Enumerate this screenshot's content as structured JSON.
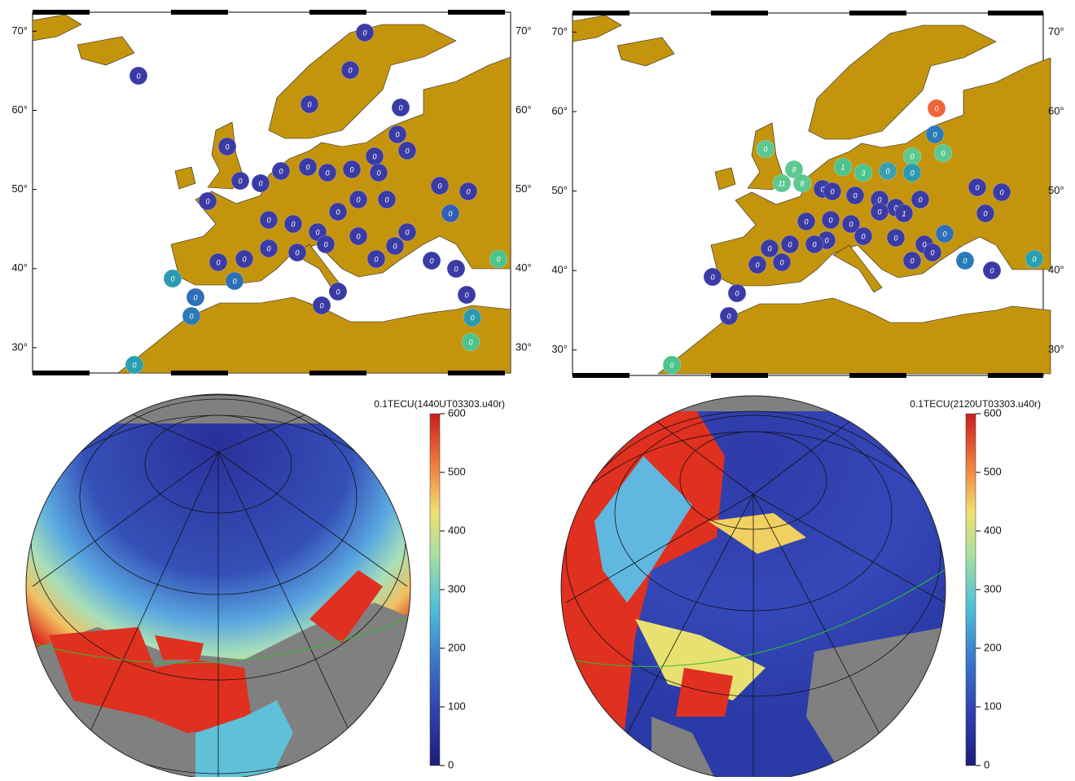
{
  "maps": [
    {
      "ylim": [
        26.8,
        72.4
      ],
      "yticks": [
        {
          "value": 70,
          "label": "70°"
        },
        {
          "value": 60,
          "label": "60°"
        },
        {
          "value": 50,
          "label": "50°"
        },
        {
          "value": 40,
          "label": "40°"
        },
        {
          "value": 30,
          "label": "30°"
        }
      ],
      "stations": [
        {
          "label": "0",
          "color": "#3b3ba6"
        },
        {
          "label": "0",
          "color": "#3b3ba6"
        },
        {
          "label": "0",
          "color": "#3b3ba6"
        },
        {
          "label": "0",
          "color": "#3b3ba6"
        },
        {
          "label": "0",
          "color": "#3b3ba6"
        },
        {
          "label": "0",
          "color": "#3b3ba6"
        },
        {
          "label": "0",
          "color": "#3b3ba6"
        },
        {
          "label": "0",
          "color": "#3b3ba6"
        },
        {
          "label": "0",
          "color": "#3b3ba6"
        },
        {
          "label": "0",
          "color": "#3b3ba6"
        },
        {
          "label": "0",
          "color": "#3b3ba6"
        },
        {
          "label": "0",
          "color": "#3b3ba6"
        },
        {
          "label": "0",
          "color": "#3b3ba6"
        },
        {
          "label": "0",
          "color": "#3b3ba6"
        },
        {
          "label": "0",
          "color": "#3b3ba6"
        },
        {
          "label": "0",
          "color": "#3b3ba6"
        },
        {
          "label": "0",
          "color": "#3b3ba6"
        },
        {
          "label": "0",
          "color": "#3b3ba6"
        },
        {
          "label": "0",
          "color": "#3b3ba6"
        },
        {
          "label": "0",
          "color": "#2f5fb8"
        },
        {
          "label": "0",
          "color": "#3b3ba6"
        },
        {
          "label": "0",
          "color": "#3b3ba6"
        },
        {
          "label": "0",
          "color": "#3b3ba6"
        },
        {
          "label": "0",
          "color": "#3b3ba6"
        },
        {
          "label": "0",
          "color": "#3b3ba6"
        },
        {
          "label": "0",
          "color": "#3b3ba6"
        },
        {
          "label": "0",
          "color": "#3b3ba6"
        },
        {
          "label": "0",
          "color": "#3b3ba6"
        },
        {
          "label": "0",
          "color": "#3b3ba6"
        },
        {
          "label": "0",
          "color": "#3b3ba6"
        },
        {
          "label": "0",
          "color": "#3b3ba6"
        },
        {
          "label": "0",
          "color": "#3b3ba6"
        },
        {
          "label": "0",
          "color": "#3b3ba6"
        },
        {
          "label": "0",
          "color": "#3b3ba6"
        },
        {
          "label": "0",
          "color": "#3b3ba6"
        },
        {
          "label": "0",
          "color": "#3b3ba6"
        },
        {
          "label": "0",
          "color": "#3b3ba6"
        },
        {
          "label": "0",
          "color": "#4cc48c"
        },
        {
          "label": "0",
          "color": "#2a9ab0"
        },
        {
          "label": "0",
          "color": "#2f6fb8"
        },
        {
          "label": "0",
          "color": "#2f6fb8"
        },
        {
          "label": "0",
          "color": "#2a7ab8"
        },
        {
          "label": "0",
          "color": "#3b3ba6"
        },
        {
          "label": "0",
          "color": "#3b3ba6"
        },
        {
          "label": "0",
          "color": "#3b3ba6"
        },
        {
          "label": "0",
          "color": "#2a9ab0"
        },
        {
          "label": "0",
          "color": "#4cc48c"
        },
        {
          "label": "0",
          "color": "#2aa0b0"
        }
      ]
    },
    {
      "ylim": [
        26.8,
        72.4
      ],
      "yticks": [
        {
          "value": 70,
          "label": "70°"
        },
        {
          "value": 60,
          "label": "60°"
        },
        {
          "value": 50,
          "label": "50°"
        },
        {
          "value": 40,
          "label": "40°"
        },
        {
          "value": 30,
          "label": "30°"
        }
      ],
      "stations": [
        {
          "label": "0",
          "color": "#f0643c"
        },
        {
          "label": "0",
          "color": "#2a7ab8"
        },
        {
          "label": "0",
          "color": "#5cc890"
        },
        {
          "label": "0",
          "color": "#5cc890"
        },
        {
          "label": "8",
          "color": "#5cc890"
        },
        {
          "label": "1",
          "color": "#4cc48c"
        },
        {
          "label": "3",
          "color": "#4cc48c"
        },
        {
          "label": "0",
          "color": "#3aa0b0"
        },
        {
          "label": "0",
          "color": "#5cc890"
        },
        {
          "label": "0",
          "color": "#2a9ab0"
        },
        {
          "label": "11",
          "color": "#5cc890"
        },
        {
          "label": "8",
          "color": "#5cc890"
        },
        {
          "label": "0",
          "color": "#3b3ba6"
        },
        {
          "label": "0",
          "color": "#3b3ba6"
        },
        {
          "label": "0",
          "color": "#3b3ba6"
        },
        {
          "label": "0",
          "color": "#3b3ba6"
        },
        {
          "label": "0",
          "color": "#3b3ba6"
        },
        {
          "label": "0",
          "color": "#3b3ba6"
        },
        {
          "label": "1",
          "color": "#3b3ba6"
        },
        {
          "label": "0",
          "color": "#3b3ba6"
        },
        {
          "label": "0",
          "color": "#3b3ba6"
        },
        {
          "label": "0",
          "color": "#3b3ba6"
        },
        {
          "label": "0",
          "color": "#3b3ba6"
        },
        {
          "label": "0",
          "color": "#3b3ba6"
        },
        {
          "label": "0",
          "color": "#3b3ba6"
        },
        {
          "label": "0",
          "color": "#3b3ba6"
        },
        {
          "label": "0",
          "color": "#3b3ba6"
        },
        {
          "label": "0",
          "color": "#3b3ba6"
        },
        {
          "label": "0",
          "color": "#3b3ba6"
        },
        {
          "label": "0",
          "color": "#3b3ba6"
        },
        {
          "label": "0",
          "color": "#3b3ba6"
        },
        {
          "label": "0",
          "color": "#3b3ba6"
        },
        {
          "label": "0",
          "color": "#3b3ba6"
        },
        {
          "label": "0",
          "color": "#3b3ba6"
        },
        {
          "label": "0",
          "color": "#3b3ba6"
        },
        {
          "label": "0",
          "color": "#2f6fb8"
        },
        {
          "label": "0",
          "color": "#3b3ba6"
        },
        {
          "label": "0",
          "color": "#3b3ba6"
        },
        {
          "label": "0",
          "color": "#2a7ab8"
        },
        {
          "label": "0",
          "color": "#2aa0b0"
        },
        {
          "label": "0",
          "color": "#3b3ba6"
        },
        {
          "label": "0",
          "color": "#3b3ba6"
        },
        {
          "label": "0",
          "color": "#3b3ba6"
        },
        {
          "label": "0",
          "color": "#3b3ba6"
        },
        {
          "label": "0",
          "color": "#4cc48c"
        }
      ]
    }
  ],
  "tec_panels": [
    {
      "title": "0.1TECU(1440UT03303.u40r)",
      "colorbar": {
        "lim": [
          0,
          600
        ],
        "ticks": [
          0,
          100,
          200,
          300,
          400,
          500,
          600
        ]
      }
    },
    {
      "title": "0.1TECU(2120UT03303.u40r)",
      "colorbar": {
        "lim": [
          0,
          600
        ],
        "ticks": [
          0,
          100,
          200,
          300,
          400,
          500,
          600
        ]
      }
    }
  ]
}
